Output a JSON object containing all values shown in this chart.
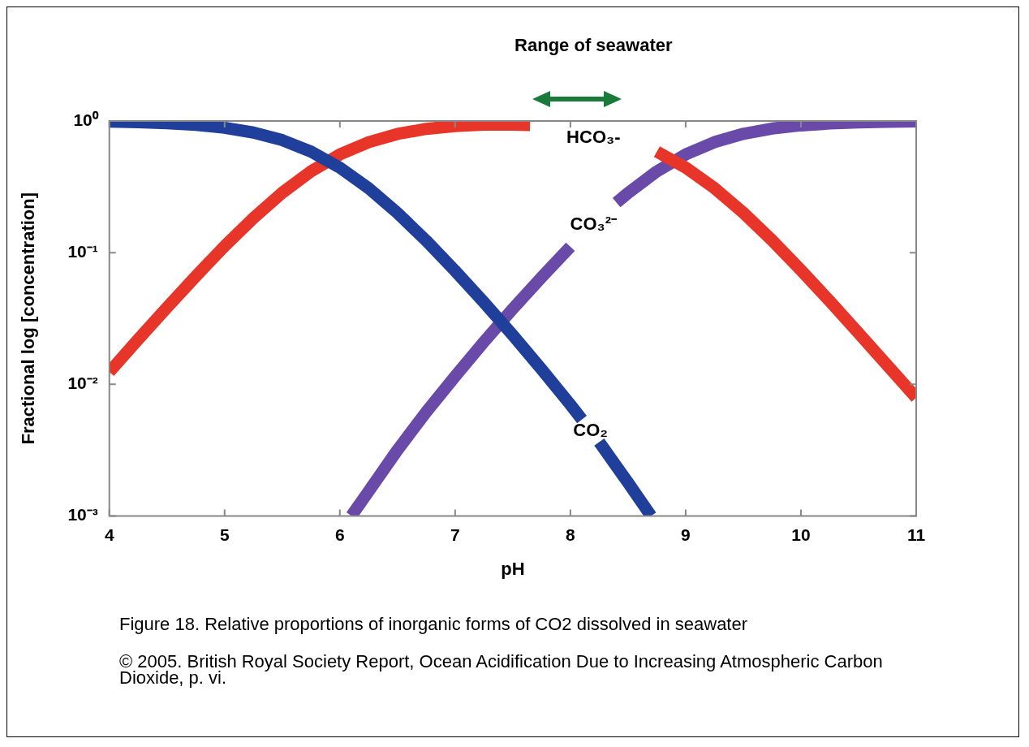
{
  "chart_data": {
    "type": "line",
    "xlabel": "pH",
    "ylabel": "Fractional log [concentration]",
    "xlim": [
      4,
      11
    ],
    "xticks": [
      4,
      5,
      6,
      7,
      8,
      9,
      10,
      11
    ],
    "ylim": [
      0.001,
      1
    ],
    "yticks": [
      {
        "value": 1,
        "label": "10⁰"
      },
      {
        "value": 0.1,
        "label": "10⁻¹"
      },
      {
        "value": 0.01,
        "label": "10⁻²"
      },
      {
        "value": 0.001,
        "label": "10⁻³"
      }
    ],
    "log": "y",
    "grid": false,
    "legend": false,
    "marker": "none",
    "line_style": "solid",
    "series": [
      {
        "name": "CO₂",
        "color": "#1f3f9a",
        "x": [
          4,
          4.25,
          4.5,
          4.75,
          5,
          5.25,
          5.5,
          5.75,
          6,
          6.25,
          6.5,
          6.75,
          7,
          7.25,
          7.5,
          7.75,
          8,
          8.1,
          8.17,
          8.25,
          8.5,
          8.7
        ],
        "values": [
          0.988,
          0.978,
          0.962,
          0.934,
          0.888,
          0.817,
          0.715,
          0.585,
          0.442,
          0.308,
          0.2,
          0.123,
          0.0727,
          0.0419,
          0.0236,
          0.013,
          0.007,
          0.0054,
          null,
          0.00364,
          0.00179,
          0.001
        ]
      },
      {
        "name": "HCO₃-",
        "color": "#e8352a",
        "x": [
          4,
          4.25,
          4.5,
          4.75,
          5,
          5.25,
          5.5,
          5.75,
          6,
          6.25,
          6.5,
          6.75,
          7,
          7.25,
          7.5,
          7.65,
          8.2,
          8.75,
          9,
          9.25,
          9.5,
          9.75,
          10,
          10.25,
          10.5,
          10.75,
          11
        ],
        "values": [
          0.0124,
          0.0219,
          0.0383,
          0.0661,
          0.112,
          0.183,
          0.285,
          0.415,
          0.557,
          0.69,
          0.797,
          0.871,
          0.916,
          0.937,
          0.939,
          0.931,
          null,
          0.585,
          0.443,
          0.309,
          0.201,
          0.124,
          0.0736,
          0.0428,
          0.0245,
          0.0139,
          0.0079
        ]
      },
      {
        "name": "CO₃²⁻",
        "color": "#6a4aa8",
        "x": [
          6.1,
          6.25,
          6.5,
          6.75,
          7,
          7.25,
          7.5,
          7.75,
          8,
          8.2,
          8.4,
          8.5,
          8.75,
          9,
          9.25,
          9.5,
          9.75,
          10,
          10.25,
          10.5,
          10.75,
          11
        ],
        "values": [
          0.001,
          0.00154,
          0.00317,
          0.00617,
          0.0115,
          0.021,
          0.0374,
          0.065,
          0.111,
          null,
          0.24,
          0.284,
          0.414,
          0.557,
          0.691,
          0.799,
          0.876,
          0.926,
          0.957,
          0.976,
          0.986,
          0.992
        ]
      }
    ],
    "title": "Range of seawater",
    "annotations": [
      "Figure 18. Relative proportions of inorganic forms of CO2 dissolved in seawater",
      "© 2005. British Royal Society Report, Ocean Acidification Due to Increasing Atmospheric Carbon Dioxide, p. vi."
    ]
  }
}
